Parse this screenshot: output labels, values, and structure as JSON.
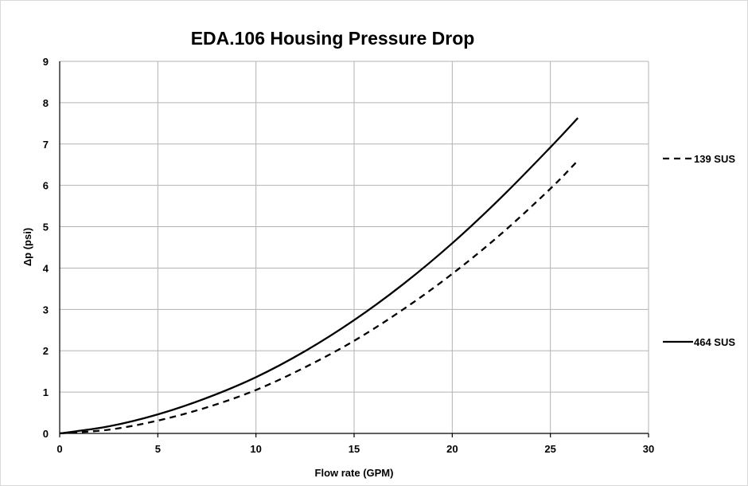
{
  "chart_data": {
    "type": "line",
    "title": "EDA.106 Housing Pressure Drop",
    "xlabel": "Flow rate (GPM)",
    "ylabel": "Δp (psi)",
    "xlim": [
      0,
      30
    ],
    "ylim": [
      0,
      9
    ],
    "x_ticks": [
      "0",
      "5",
      "10",
      "15",
      "20",
      "25",
      "30"
    ],
    "y_ticks": [
      "0",
      "1",
      "2",
      "3",
      "4",
      "5",
      "6",
      "7",
      "8",
      "9"
    ],
    "grid": true,
    "legend_position": "right",
    "series": [
      {
        "name": "139 SUS",
        "style": "dashed",
        "color": "#000000",
        "x": [
          0,
          2.5,
          5,
          7.5,
          10,
          12.5,
          15,
          17.5,
          20,
          22.5,
          25,
          26.4
        ],
        "y": [
          0,
          0.09,
          0.31,
          0.63,
          1.05,
          1.6,
          2.24,
          3.0,
          3.86,
          4.83,
          5.92,
          6.6
        ]
      },
      {
        "name": "464 SUS",
        "style": "solid",
        "color": "#000000",
        "x": [
          0,
          2.5,
          5,
          7.5,
          10,
          12.5,
          15,
          17.5,
          20,
          22.5,
          25,
          26.4
        ],
        "y": [
          0,
          0.17,
          0.46,
          0.86,
          1.36,
          1.99,
          2.74,
          3.61,
          4.6,
          5.71,
          6.92,
          7.63
        ]
      }
    ]
  }
}
